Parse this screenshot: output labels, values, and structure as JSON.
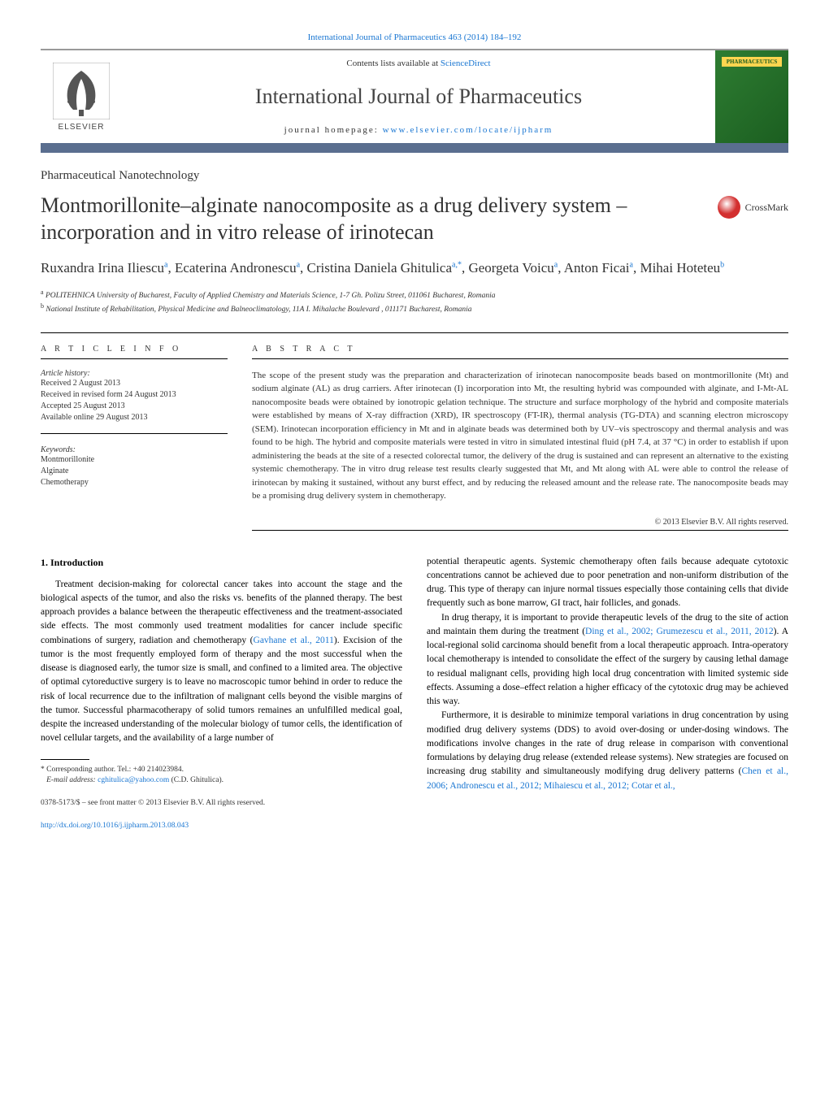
{
  "journal_ref_link": "International Journal of Pharmaceutics 463 (2014) 184–192",
  "header": {
    "contents_prefix": "Contents lists available at ",
    "contents_link": "ScienceDirect",
    "journal_name": "International Journal of Pharmaceutics",
    "homepage_prefix": "journal homepage: ",
    "homepage_link": "www.elsevier.com/locate/ijpharm",
    "elsevier_label": "ELSEVIER",
    "cover_label": "PHARMACEUTICS"
  },
  "section_tag": "Pharmaceutical Nanotechnology",
  "title": "Montmorillonite–alginate nanocomposite as a drug delivery system – incorporation and in vitro release of irinotecan",
  "crossmark_label": "CrossMark",
  "authors_html": "Ruxandra Irina Iliescu<sup>a</sup>, Ecaterina Andronescu<sup>a</sup>, Cristina Daniela Ghitulica<sup>a,*</sup>, Georgeta Voicu<sup>a</sup>, Anton Ficai<sup>a</sup>, Mihai Hoteteu<sup>b</sup>",
  "affiliations": {
    "a": "POLITEHNICA University of Bucharest, Faculty of Applied Chemistry and Materials Science, 1-7 Gh. Polizu Street, 011061 Bucharest, Romania",
    "b": "National Institute of Rehabilitation, Physical Medicine and Balneoclimatology, 11A I. Mihalache Boulevard , 011171 Bucharest, Romania"
  },
  "article_info": {
    "heading": "A R T I C L E   I N F O",
    "history_label": "Article history:",
    "received": "Received 2 August 2013",
    "revised": "Received in revised form 24 August 2013",
    "accepted": "Accepted 25 August 2013",
    "online": "Available online 29 August 2013",
    "keywords_label": "Keywords:",
    "keywords": [
      "Montmorillonite",
      "Alginate",
      "Chemotherapy"
    ]
  },
  "abstract": {
    "heading": "A B S T R A C T",
    "text": "The scope of the present study was the preparation and characterization of irinotecan nanocomposite beads based on montmorillonite (Mt) and sodium alginate (AL) as drug carriers. After irinotecan (I) incorporation into Mt, the resulting hybrid was compounded with alginate, and I-Mt-AL nanocomposite beads were obtained by ionotropic gelation technique. The structure and surface morphology of the hybrid and composite materials were established by means of X-ray diffraction (XRD), IR spectroscopy (FT-IR), thermal analysis (TG-DTA) and scanning electron microscopy (SEM). Irinotecan incorporation efficiency in Mt and in alginate beads was determined both by UV–vis spectroscopy and thermal analysis and was found to be high. The hybrid and composite materials were tested in vitro in simulated intestinal fluid (pH 7.4, at 37 °C) in order to establish if upon administering the beads at the site of a resected colorectal tumor, the delivery of the drug is sustained and can represent an alternative to the existing systemic chemotherapy. The in vitro drug release test results clearly suggested that Mt, and Mt along with AL were able to control the release of irinotecan by making it sustained, without any burst effect, and by reducing the released amount and the release rate. The nanocomposite beads may be a promising drug delivery system in chemotherapy.",
    "copyright": "© 2013 Elsevier B.V. All rights reserved."
  },
  "body": {
    "section1_heading": "1.  Introduction",
    "col1_p1_a": "Treatment decision-making for colorectal cancer takes into account the stage and the biological aspects of the tumor, and also the risks vs. benefits of the planned therapy. The best approach provides a balance between the therapeutic effectiveness and the treatment-associated side effects. The most commonly used treatment modalities for cancer include specific combinations of surgery, radiation and chemotherapy (",
    "col1_p1_cite": "Gavhane et al., 2011",
    "col1_p1_b": "). Excision of the tumor is the most frequently employed form of therapy and the most successful when the disease is diagnosed early, the tumor size is small, and confined to a limited area. The objective of optimal cytoreductive surgery is to leave no macroscopic tumor behind in order to reduce the risk of local recurrence due to the infiltration of malignant cells beyond the visible margins of the tumor. Successful pharmacotherapy of solid tumors remaines an unfulfilled medical goal, despite the increased understanding of the molecular biology of tumor cells, the identification of novel cellular targets, and the availability of a large number of",
    "col2_p1": "potential therapeutic agents. Systemic chemotherapy often fails because adequate cytotoxic concentrations cannot be achieved due to poor penetration and non-uniform distribution of the drug. This type of therapy can injure normal tissues especially those containing cells that divide frequently such as bone marrow, GI tract, hair follicles, and gonads.",
    "col2_p2_a": "In drug therapy, it is important to provide therapeutic levels of the drug to the site of action and maintain them during the treatment (",
    "col2_p2_cite": "Ding et al., 2002; Grumezescu et al., 2011, 2012",
    "col2_p2_b": "). A local-regional solid carcinoma should benefit from a local therapeutic approach. Intra-operatory local chemotherapy is intended to consolidate the effect of the surgery by causing lethal damage to residual malignant cells, providing high local drug concentration with limited systemic side effects. Assuming a dose–effect relation a higher efficacy of the cytotoxic drug may be achieved this way.",
    "col2_p3_a": "Furthermore, it is desirable to minimize temporal variations in drug concentration by using modified drug delivery systems (DDS) to avoid over-dosing or under-dosing windows. The modifications involve changes in the rate of drug release in comparison with conventional formulations by delaying drug release (extended release systems). New strategies are focused on increasing drug stability and simultaneously modifying drug delivery patterns (",
    "col2_p3_cite": "Chen et al., 2006; Andronescu et al., 2012; Mihaiescu et al., 2012; Cotar et al.,"
  },
  "footnote": {
    "corresponding": "Corresponding author. Tel.: +40 214023984.",
    "email_label": "E-mail address: ",
    "email": "cghitulica@yahoo.com",
    "email_suffix": " (C.D. Ghitulica)."
  },
  "bottom": {
    "issn": "0378-5173/$ – see front matter © 2013 Elsevier B.V. All rights reserved.",
    "doi": "http://dx.doi.org/10.1016/j.ijpharm.2013.08.043"
  },
  "colors": {
    "link": "#1976d2",
    "band": "#5a6e8f",
    "cover_bg": "#2e7d32"
  }
}
